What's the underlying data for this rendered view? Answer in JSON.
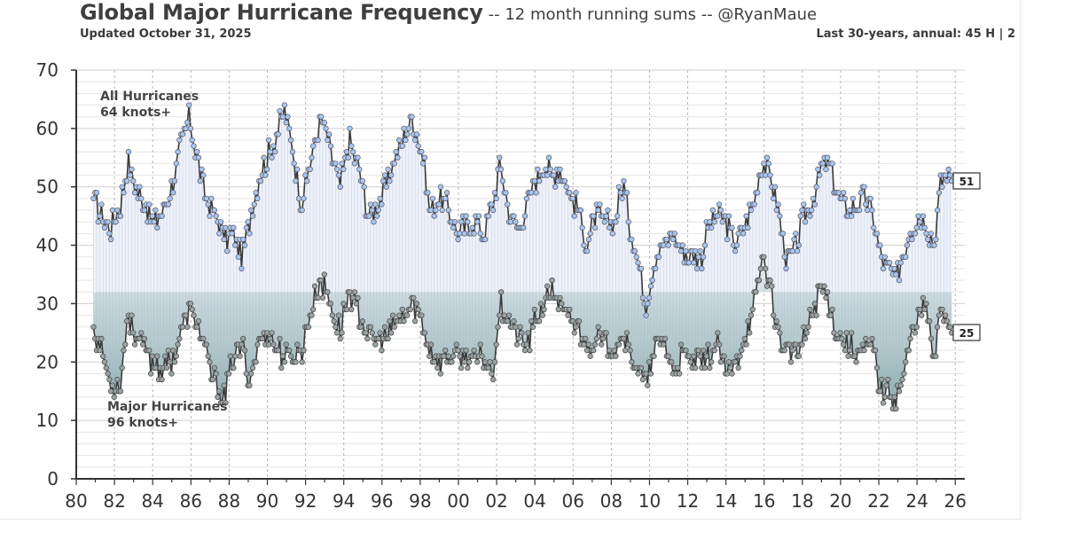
{
  "header": {
    "title": "Global Major Hurricane Frequency",
    "subtitle": "-- 12 month running sums -- @RyanMaue",
    "updated": "Updated October 31, 2025",
    "annual": "Last 30-years, annual:  45 H  |  2"
  },
  "colors": {
    "hurricane_line": "#3a3a3a",
    "hurricane_marker": "#a9c6ec",
    "major_marker": "#9aa3a3",
    "upper_fill": "#eef1fb",
    "lower_fill": "#5f8f8f",
    "grid": "#d6d6d6"
  },
  "chart_data": {
    "type": "line",
    "title": "Global Major Hurricane Frequency",
    "ylim": [
      0,
      70
    ],
    "yticks": [
      "0",
      "10",
      "20",
      "30",
      "40",
      "50",
      "60",
      "70"
    ],
    "xlim": [
      1980.0,
      2026.5
    ],
    "xticks": [
      "80",
      "82",
      "84",
      "86",
      "88",
      "90",
      "92",
      "94",
      "96",
      "98",
      "00",
      "02",
      "04",
      "06",
      "08",
      "10",
      "12",
      "14",
      "16",
      "18",
      "20",
      "22",
      "24",
      "26"
    ],
    "series": [
      {
        "name": "All Hurricanes 64 knots+",
        "label_line1": "All Hurricanes",
        "label_line2": "64 knots+",
        "end_label": "51",
        "keypoints": [
          [
            1980.9,
            48
          ],
          [
            1981.3,
            45
          ],
          [
            1981.8,
            43
          ],
          [
            1982.3,
            47
          ],
          [
            1982.7,
            54
          ],
          [
            1983.1,
            50
          ],
          [
            1983.6,
            47
          ],
          [
            1984.0,
            44
          ],
          [
            1984.5,
            45
          ],
          [
            1985.0,
            50
          ],
          [
            1985.4,
            56
          ],
          [
            1985.9,
            62
          ],
          [
            1986.3,
            55
          ],
          [
            1986.8,
            48
          ],
          [
            1987.3,
            45
          ],
          [
            1987.8,
            41
          ],
          [
            1988.2,
            42
          ],
          [
            1988.7,
            38
          ],
          [
            1989.1,
            45
          ],
          [
            1989.6,
            52
          ],
          [
            1990.1,
            56
          ],
          [
            1990.5,
            59
          ],
          [
            1990.9,
            63
          ],
          [
            1991.3,
            57
          ],
          [
            1991.8,
            47
          ],
          [
            1992.3,
            55
          ],
          [
            1992.8,
            62
          ],
          [
            1993.3,
            56
          ],
          [
            1993.8,
            50
          ],
          [
            1994.3,
            58
          ],
          [
            1994.8,
            53
          ],
          [
            1995.3,
            45
          ],
          [
            1995.8,
            47
          ],
          [
            1996.3,
            51
          ],
          [
            1996.8,
            56
          ],
          [
            1997.3,
            60
          ],
          [
            1997.6,
            62
          ],
          [
            1998.1,
            56
          ],
          [
            1998.5,
            46
          ],
          [
            1999.0,
            48
          ],
          [
            1999.4,
            47
          ],
          [
            1999.9,
            42
          ],
          [
            2000.4,
            43
          ],
          [
            2000.9,
            44
          ],
          [
            2001.3,
            42
          ],
          [
            2001.8,
            47
          ],
          [
            2002.2,
            54
          ],
          [
            2002.7,
            45
          ],
          [
            2003.1,
            43
          ],
          [
            2003.6,
            47
          ],
          [
            2004.0,
            51
          ],
          [
            2004.5,
            54
          ],
          [
            2004.9,
            52
          ],
          [
            2005.3,
            53
          ],
          [
            2005.8,
            49
          ],
          [
            2006.3,
            46
          ],
          [
            2006.7,
            40
          ],
          [
            2007.2,
            45
          ],
          [
            2007.7,
            44
          ],
          [
            2008.2,
            44
          ],
          [
            2008.6,
            51
          ],
          [
            2009.0,
            43
          ],
          [
            2009.4,
            37
          ],
          [
            2009.8,
            30
          ],
          [
            2010.3,
            38
          ],
          [
            2010.7,
            40
          ],
          [
            2011.2,
            42
          ],
          [
            2011.7,
            39
          ],
          [
            2012.2,
            38
          ],
          [
            2012.7,
            38
          ],
          [
            2013.1,
            43
          ],
          [
            2013.6,
            45
          ],
          [
            2014.0,
            44
          ],
          [
            2014.5,
            40
          ],
          [
            2014.9,
            43
          ],
          [
            2015.4,
            47
          ],
          [
            2015.9,
            54
          ],
          [
            2016.3,
            52
          ],
          [
            2016.8,
            45
          ],
          [
            2017.2,
            37
          ],
          [
            2017.7,
            40
          ],
          [
            2018.1,
            45
          ],
          [
            2018.6,
            48
          ],
          [
            2019.0,
            53
          ],
          [
            2019.4,
            54
          ],
          [
            2019.9,
            48
          ],
          [
            2020.4,
            46
          ],
          [
            2020.8,
            47
          ],
          [
            2021.3,
            48
          ],
          [
            2021.7,
            45
          ],
          [
            2022.1,
            38
          ],
          [
            2022.5,
            36
          ],
          [
            2022.9,
            34
          ],
          [
            2023.3,
            39
          ],
          [
            2023.7,
            43
          ],
          [
            2024.1,
            45
          ],
          [
            2024.5,
            44
          ],
          [
            2024.9,
            40
          ],
          [
            2025.2,
            50
          ],
          [
            2025.55,
            53
          ],
          [
            2025.83,
            51
          ]
        ]
      },
      {
        "name": "Major Hurricanes 96 knots+",
        "label_line1": "Major Hurricanes",
        "label_line2": "96 knots+",
        "end_label": "25",
        "keypoints": [
          [
            1980.9,
            26
          ],
          [
            1981.3,
            22
          ],
          [
            1981.8,
            16
          ],
          [
            1982.3,
            16
          ],
          [
            1982.7,
            28
          ],
          [
            1983.1,
            25
          ],
          [
            1983.6,
            22
          ],
          [
            1984.0,
            20
          ],
          [
            1984.5,
            19
          ],
          [
            1985.0,
            20
          ],
          [
            1985.4,
            24
          ],
          [
            1985.9,
            29
          ],
          [
            1986.3,
            27
          ],
          [
            1986.8,
            21
          ],
          [
            1987.3,
            16
          ],
          [
            1987.8,
            14
          ],
          [
            1988.2,
            21
          ],
          [
            1988.7,
            22
          ],
          [
            1989.1,
            17
          ],
          [
            1989.6,
            24
          ],
          [
            1990.1,
            25
          ],
          [
            1990.5,
            22
          ],
          [
            1990.9,
            21
          ],
          [
            1991.3,
            21
          ],
          [
            1991.8,
            22
          ],
          [
            1992.3,
            29
          ],
          [
            1992.8,
            34
          ],
          [
            1993.3,
            30
          ],
          [
            1993.8,
            25
          ],
          [
            1994.3,
            32
          ],
          [
            1994.8,
            28
          ],
          [
            1995.3,
            24
          ],
          [
            1995.8,
            24
          ],
          [
            1996.3,
            24
          ],
          [
            1996.8,
            27
          ],
          [
            1997.3,
            28
          ],
          [
            1997.6,
            30
          ],
          [
            1998.1,
            27
          ],
          [
            1998.5,
            22
          ],
          [
            1999.0,
            20
          ],
          [
            1999.4,
            21
          ],
          [
            1999.9,
            21
          ],
          [
            2000.4,
            21
          ],
          [
            2000.9,
            20
          ],
          [
            2001.3,
            21
          ],
          [
            2001.8,
            18
          ],
          [
            2002.2,
            30
          ],
          [
            2002.7,
            27
          ],
          [
            2003.1,
            24
          ],
          [
            2003.6,
            23
          ],
          [
            2004.0,
            27
          ],
          [
            2004.5,
            30
          ],
          [
            2004.9,
            32
          ],
          [
            2005.3,
            30
          ],
          [
            2005.8,
            27
          ],
          [
            2006.3,
            26
          ],
          [
            2006.7,
            23
          ],
          [
            2007.2,
            24
          ],
          [
            2007.7,
            23
          ],
          [
            2008.2,
            23
          ],
          [
            2008.6,
            25
          ],
          [
            2009.0,
            21
          ],
          [
            2009.4,
            19
          ],
          [
            2009.8,
            16
          ],
          [
            2010.3,
            22
          ],
          [
            2010.7,
            24
          ],
          [
            2011.2,
            18
          ],
          [
            2011.7,
            21
          ],
          [
            2012.2,
            20
          ],
          [
            2012.7,
            20
          ],
          [
            2013.1,
            21
          ],
          [
            2013.6,
            23
          ],
          [
            2014.0,
            18
          ],
          [
            2014.5,
            19
          ],
          [
            2014.9,
            24
          ],
          [
            2015.4,
            28
          ],
          [
            2015.9,
            38
          ],
          [
            2016.3,
            33
          ],
          [
            2016.8,
            24
          ],
          [
            2017.2,
            22
          ],
          [
            2017.7,
            21
          ],
          [
            2018.1,
            24
          ],
          [
            2018.6,
            29
          ],
          [
            2019.0,
            33
          ],
          [
            2019.4,
            30
          ],
          [
            2019.9,
            24
          ],
          [
            2020.4,
            23
          ],
          [
            2020.8,
            22
          ],
          [
            2021.3,
            22
          ],
          [
            2021.7,
            23
          ],
          [
            2022.1,
            15
          ],
          [
            2022.5,
            15
          ],
          [
            2022.9,
            14
          ],
          [
            2023.3,
            17
          ],
          [
            2023.7,
            25
          ],
          [
            2024.1,
            28
          ],
          [
            2024.5,
            30
          ],
          [
            2024.9,
            19
          ],
          [
            2025.2,
            29
          ],
          [
            2025.55,
            28
          ],
          [
            2025.83,
            25
          ]
        ]
      }
    ]
  }
}
